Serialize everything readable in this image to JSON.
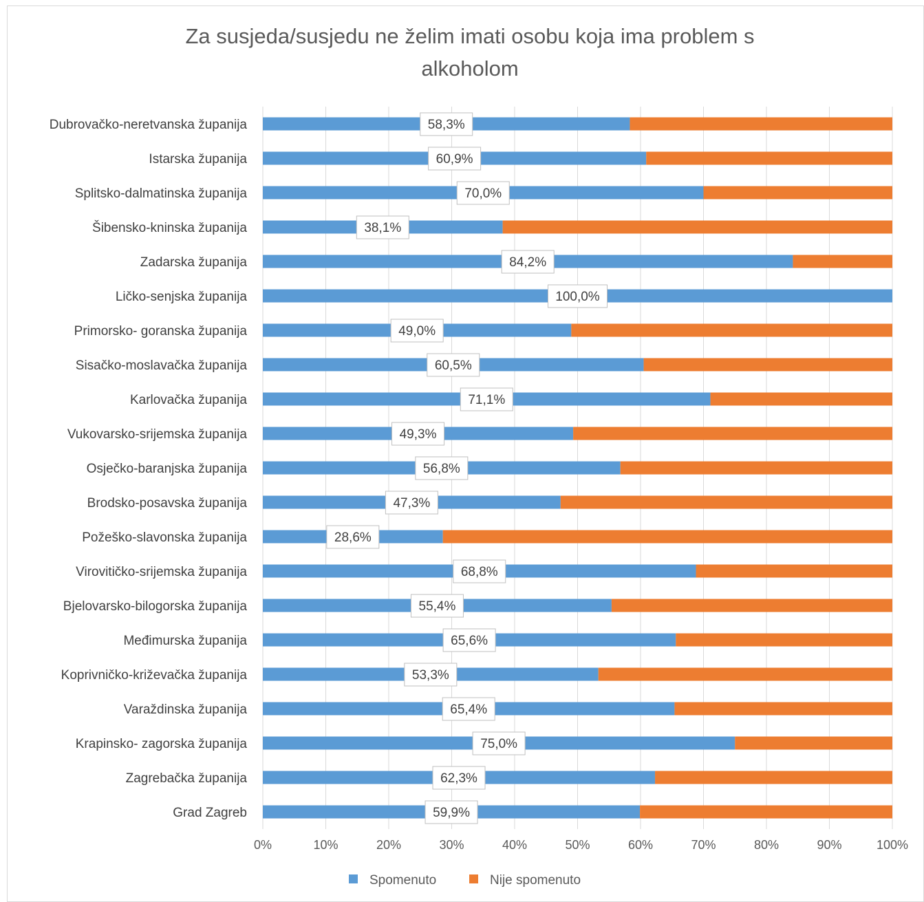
{
  "chart_data": {
    "type": "bar",
    "orientation": "horizontal",
    "stacked": "percent",
    "title": "Za susjeda/susjedu ne želim imati osobu koja ima problem s alkoholom",
    "title_lines": [
      "Za susjeda/susjedu ne želim imati osobu koja ima problem s",
      "alkoholom"
    ],
    "categories": [
      "Dubrovačko-neretvanska županija",
      "Istarska županija",
      "Splitsko-dalmatinska županija",
      "Šibensko-kninska županija",
      "Zadarska županija",
      "Ličko-senjska županija",
      "Primorsko- goranska županija",
      "Sisačko-moslavačka županija",
      "Karlovačka županija",
      "Vukovarsko-srijemska županija",
      "Osječko-baranjska županija",
      "Brodsko-posavska županija",
      "Požeško-slavonska županija",
      "Virovitičko-srijemska županija",
      "Bjelovarsko-bilogorska županija",
      "Međimurska županija",
      "Koprivničko-križevačka županija",
      "Varaždinska županija",
      "Krapinsko- zagorska županija",
      "Zagrebačka županija",
      "Grad Zagreb"
    ],
    "series": [
      {
        "name": "Spomenuto",
        "color": "#5b9bd5",
        "values": [
          58.3,
          60.9,
          70.0,
          38.1,
          84.2,
          100.0,
          49.0,
          60.5,
          71.1,
          49.3,
          56.8,
          47.3,
          28.6,
          68.8,
          55.4,
          65.6,
          53.3,
          65.4,
          75.0,
          62.3,
          59.9
        ],
        "labels": [
          "58,3%",
          "60,9%",
          "70,0%",
          "38,1%",
          "84,2%",
          "100,0%",
          "49,0%",
          "60,5%",
          "71,1%",
          "49,3%",
          "56,8%",
          "47,3%",
          "28,6%",
          "68,8%",
          "55,4%",
          "65,6%",
          "53,3%",
          "65,4%",
          "75,0%",
          "62,3%",
          "59,9%"
        ]
      },
      {
        "name": "Nije spomenuto",
        "color": "#ed7d31",
        "values": [
          41.7,
          39.1,
          30.0,
          61.9,
          15.8,
          0.0,
          51.0,
          39.5,
          28.9,
          50.7,
          43.2,
          52.7,
          71.4,
          31.2,
          44.6,
          34.4,
          46.7,
          34.6,
          25.0,
          37.7,
          40.1
        ]
      }
    ],
    "x_ticks": [
      "0%",
      "10%",
      "20%",
      "30%",
      "40%",
      "50%",
      "60%",
      "70%",
      "80%",
      "90%",
      "100%"
    ],
    "xlim": [
      0,
      100
    ],
    "grid": true,
    "legend": "bottom"
  }
}
